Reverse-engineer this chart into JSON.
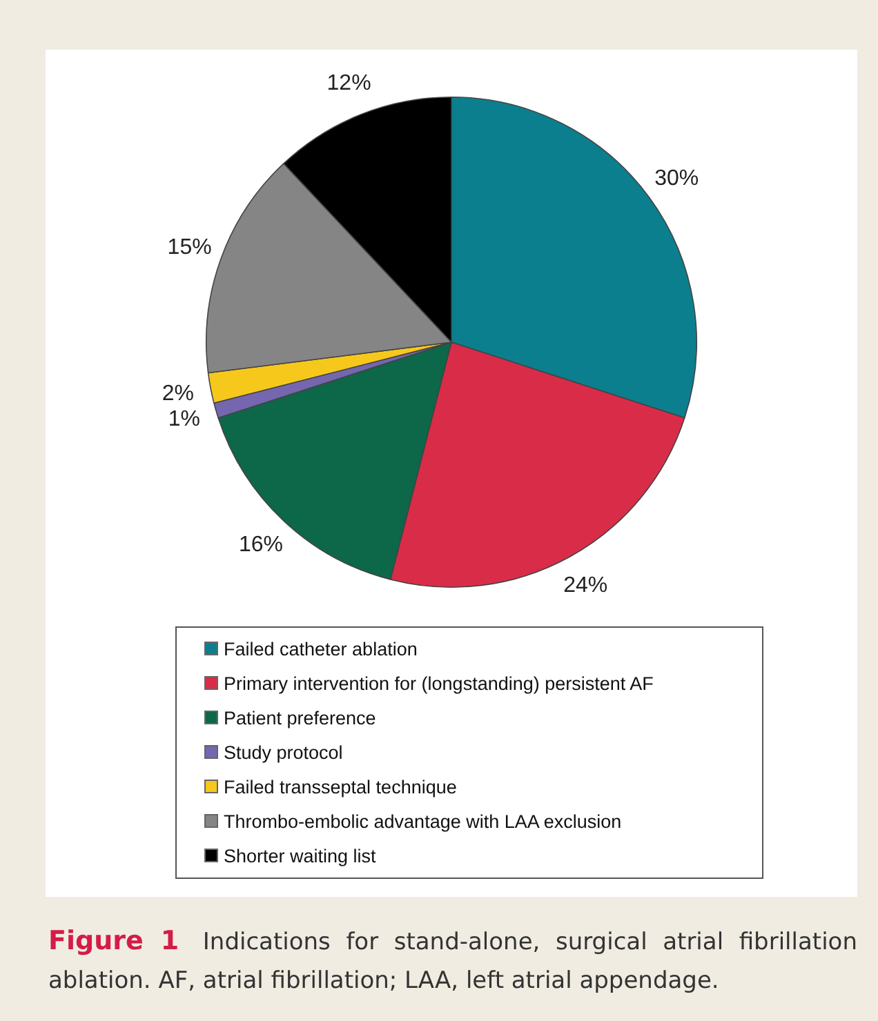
{
  "chart_data": {
    "type": "pie",
    "title": "Figure 1",
    "subtitle": "Indications for stand-alone, surgical atrial fibrillation ablation. AF, atrial fibrillation; LAA, left atrial appendage.",
    "categories": [
      "Failed catheter ablation",
      "Primary intervention for (longstanding) persistent AF",
      "Patient preference",
      "Study protocol",
      "Failed transseptal technique",
      "Thrombo-embolic advantage with LAA exclusion",
      "Shorter waiting list"
    ],
    "values": [
      30,
      24,
      16,
      1,
      2,
      15,
      12
    ],
    "value_labels": [
      "30%",
      "24%",
      "16%",
      "1%",
      "2%",
      "15%",
      "12%"
    ],
    "colors": [
      "#0b7f8e",
      "#d92c48",
      "#0d6749",
      "#7566b0",
      "#f6c81c",
      "#858585",
      "#000000"
    ],
    "legend": "bottom"
  }
}
